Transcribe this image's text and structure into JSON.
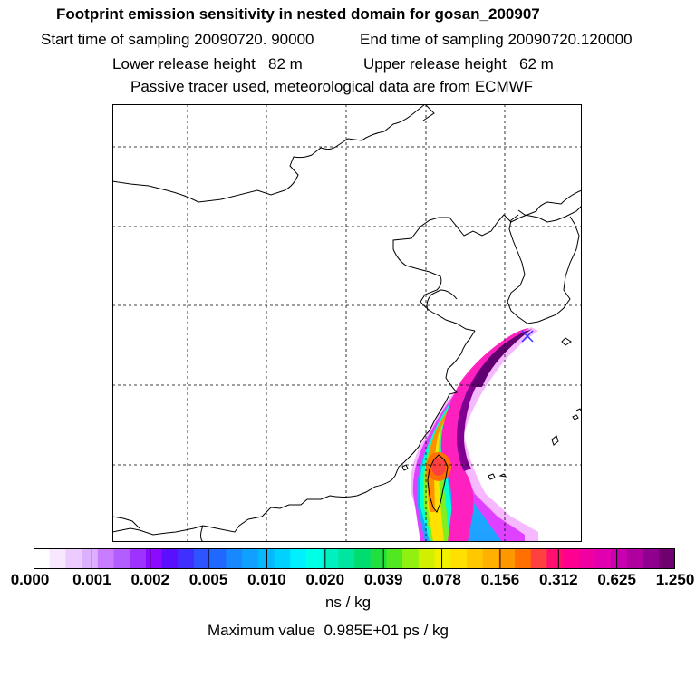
{
  "header": {
    "title": "Footprint emission sensitivity in nested domain for gosan_200907",
    "start_time": "Start time of sampling 20090720. 90000",
    "end_time": "End time of sampling 20090720.120000",
    "lower_release": "Lower release height   82 m",
    "upper_release": "Upper release height   62 m",
    "tracer_note": "Passive tracer used, meteorological data are from ECMWF"
  },
  "colorbar": {
    "ticks": [
      "0.000",
      "0.001",
      "0.002",
      "0.005",
      "0.010",
      "0.020",
      "0.039",
      "0.078",
      "0.156",
      "0.312",
      "0.625",
      "1.250"
    ],
    "colors": [
      "#ffffff",
      "#f7e8ff",
      "#eccbff",
      "#ddb0ff",
      "#c87cff",
      "#b35cff",
      "#9e32ff",
      "#8c0aff",
      "#5a10ff",
      "#4030ff",
      "#2c55ff",
      "#2068ff",
      "#1888ff",
      "#10a0ff",
      "#08b8ff",
      "#00d2ff",
      "#00f0ff",
      "#00ffe6",
      "#00f0c0",
      "#00e6a0",
      "#00dc70",
      "#20e040",
      "#50e820",
      "#90f010",
      "#d0f000",
      "#f0f000",
      "#ffe000",
      "#ffc800",
      "#ffb000",
      "#ff9800",
      "#ff7000",
      "#ff4040",
      "#ff1070",
      "#ff0090",
      "#f000a0",
      "#e000b0",
      "#c800b0",
      "#b000a0",
      "#900090",
      "#700070"
    ],
    "unit": "ns / kg"
  },
  "max_value": "Maximum value  0.985E+01 ps / kg",
  "map": {
    "grid_color": "#000000",
    "coast_color": "#000000",
    "receptor": "gosan"
  }
}
